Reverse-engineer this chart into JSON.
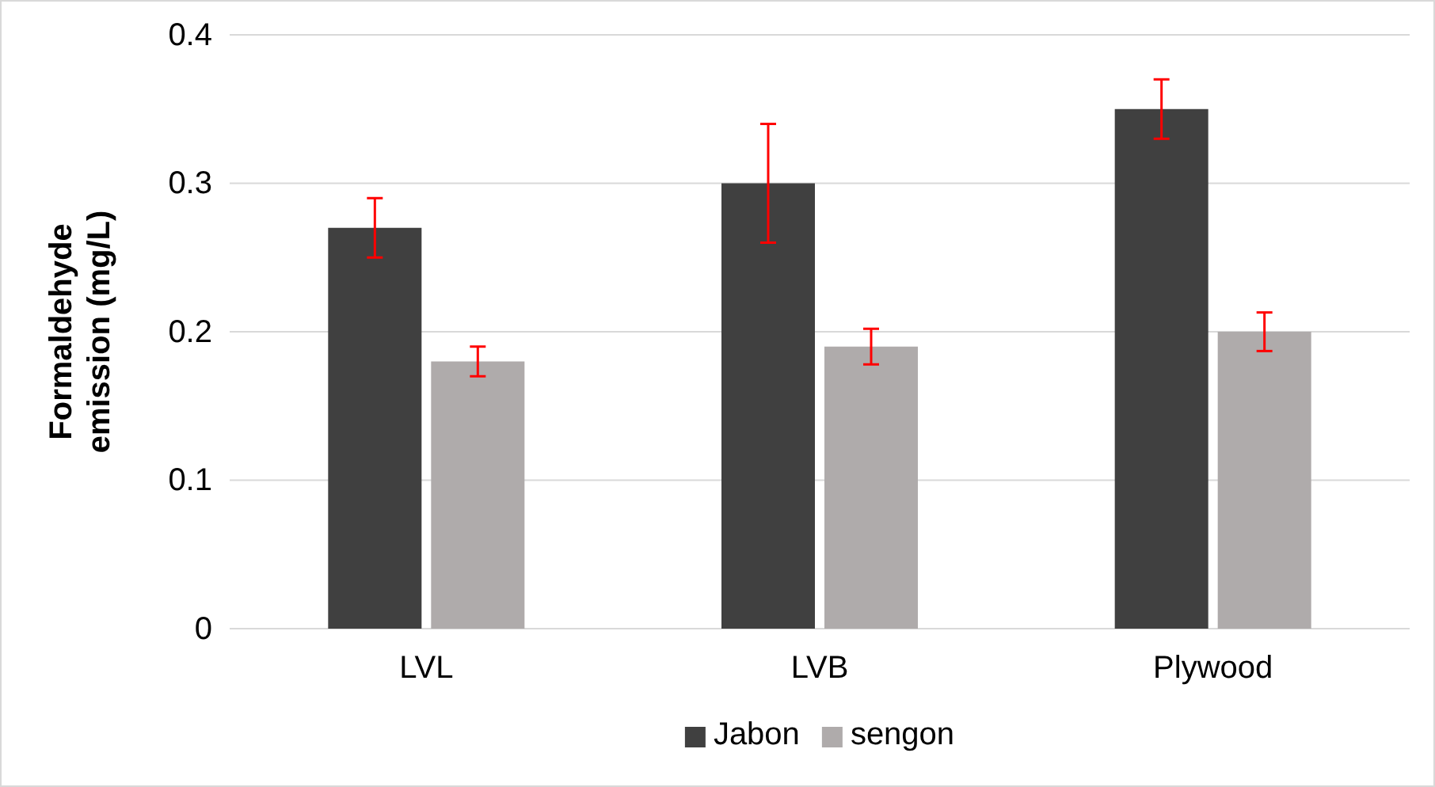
{
  "chart_data": {
    "type": "bar",
    "ylabel": "Formaldehyde emission (mg/L)",
    "categories": [
      "LVL",
      "LVB",
      "Plywood"
    ],
    "series": [
      {
        "name": "Jabon",
        "color": "#404040",
        "values": [
          0.27,
          0.3,
          0.35
        ],
        "errors": [
          0.02,
          0.04,
          0.02
        ]
      },
      {
        "name": "sengon",
        "color": "#afabab",
        "values": [
          0.18,
          0.19,
          0.2
        ],
        "errors": [
          0.01,
          0.012,
          0.013
        ]
      }
    ],
    "ylim": [
      0,
      0.4
    ],
    "yticks": [
      0,
      0.1,
      0.2,
      0.3,
      0.4
    ],
    "grid": "y",
    "legend": "bottom"
  }
}
